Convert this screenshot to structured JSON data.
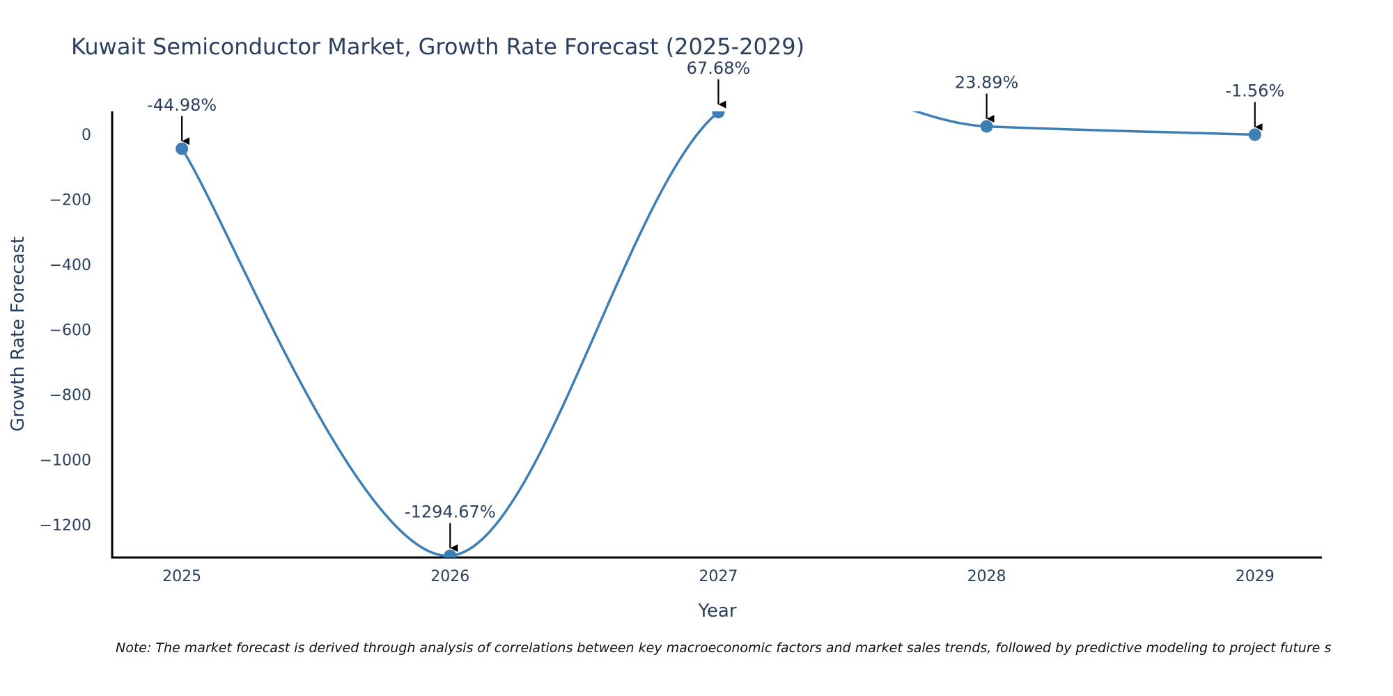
{
  "chart_data": {
    "type": "line",
    "title": "Kuwait Semiconductor Market, Growth Rate Forecast (2025-2029)",
    "xlabel": "Year",
    "ylabel": "Growth Rate Forecast",
    "x": [
      2025,
      2026,
      2027,
      2028,
      2029
    ],
    "series": [
      {
        "name": "Growth Rate Forecast",
        "values": [
          -44.98,
          -1294.67,
          67.68,
          23.89,
          -1.56
        ],
        "color": "#3d7fb4",
        "line_shape": "spline",
        "markers": true
      }
    ],
    "annotations": [
      "-44.98%",
      "-1294.67%",
      "67.68%",
      "23.89%",
      "-1.56%"
    ],
    "x_ticks": [
      "2025",
      "2026",
      "2027",
      "2028",
      "2029"
    ],
    "y_ticks": [
      0,
      -200,
      -400,
      -600,
      -800,
      -1000,
      -1200
    ],
    "y_tick_labels": [
      "0",
      "−200",
      "−400",
      "−600",
      "−800",
      "−1000",
      "−1200"
    ],
    "xlim": [
      2024.74,
      2029.25
    ],
    "ylim": [
      -1300,
      70
    ],
    "grid": false,
    "legend": "none"
  },
  "note": "Note: The market forecast is derived through analysis of correlations between key macroeconomic factors and market sales trends, followed by predictive modeling to project future s"
}
